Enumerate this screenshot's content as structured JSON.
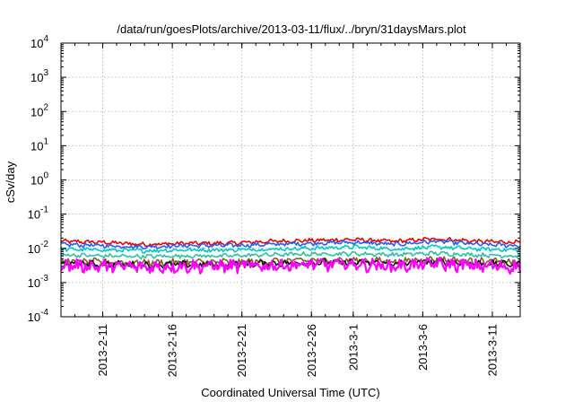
{
  "chart_data": {
    "type": "line",
    "title": "/data/run/goesPlots/archive/2013-03-11/flux/../bryn/31daysMars.plot",
    "xlabel": "Coordinated Universal Time (UTC)",
    "ylabel": "cSv/day",
    "yscale": "log",
    "ylim": [
      0.0001,
      10000
    ],
    "xlim": [
      "2013-02-08",
      "2013-03-13"
    ],
    "grid": true,
    "legend": "none",
    "yticks": [
      {
        "base": "10",
        "exp": "-4"
      },
      {
        "base": "10",
        "exp": "-3"
      },
      {
        "base": "10",
        "exp": "-2"
      },
      {
        "base": "10",
        "exp": "-1"
      },
      {
        "base": "10",
        "exp": "0"
      },
      {
        "base": "10",
        "exp": "1"
      },
      {
        "base": "10",
        "exp": "2"
      },
      {
        "base": "10",
        "exp": "3"
      },
      {
        "base": "10",
        "exp": "4"
      }
    ],
    "xticks": [
      {
        "date": "2013-02-11",
        "label": "2013-2-11"
      },
      {
        "date": "2013-02-16",
        "label": "2013-2-16"
      },
      {
        "date": "2013-02-21",
        "label": "2013-2-21"
      },
      {
        "date": "2013-02-26",
        "label": "2013-2-26"
      },
      {
        "date": "2013-03-01",
        "label": "2013-3-1"
      },
      {
        "date": "2013-03-06",
        "label": "2013-3-6"
      },
      {
        "date": "2013-03-11",
        "label": "2013-3-11"
      }
    ],
    "series": [
      {
        "color": "#ee0000",
        "x": [
          "2013-02-08",
          "2013-02-11",
          "2013-02-14",
          "2013-02-17",
          "2013-02-20",
          "2013-02-23",
          "2013-02-26",
          "2013-03-01",
          "2013-03-04",
          "2013-03-07",
          "2013-03-10",
          "2013-03-13"
        ],
        "y": [
          0.016,
          0.015,
          0.013,
          0.014,
          0.014,
          0.016,
          0.017,
          0.018,
          0.016,
          0.019,
          0.016,
          0.015
        ]
      },
      {
        "color": "#1e60ff",
        "x": [
          "2013-02-08",
          "2013-02-11",
          "2013-02-14",
          "2013-02-17",
          "2013-02-20",
          "2013-02-23",
          "2013-02-26",
          "2013-03-01",
          "2013-03-04",
          "2013-03-07",
          "2013-03-10",
          "2013-03-13"
        ],
        "y": [
          0.013,
          0.012,
          0.011,
          0.012,
          0.012,
          0.013,
          0.014,
          0.015,
          0.013,
          0.016,
          0.013,
          0.012
        ]
      },
      {
        "color": "#00c8c8",
        "x": [
          "2013-02-08",
          "2013-02-11",
          "2013-02-14",
          "2013-02-17",
          "2013-02-20",
          "2013-02-23",
          "2013-02-26",
          "2013-03-01",
          "2013-03-04",
          "2013-03-07",
          "2013-03-10",
          "2013-03-13"
        ],
        "y": [
          0.0095,
          0.009,
          0.0085,
          0.009,
          0.009,
          0.0095,
          0.01,
          0.011,
          0.0095,
          0.011,
          0.0095,
          0.009
        ]
      },
      {
        "color": "#2ec0a0",
        "x": [
          "2013-02-08",
          "2013-02-11",
          "2013-02-14",
          "2013-02-17",
          "2013-02-20",
          "2013-02-23",
          "2013-02-26",
          "2013-03-01",
          "2013-03-04",
          "2013-03-07",
          "2013-03-10",
          "2013-03-13"
        ],
        "y": [
          0.0065,
          0.006,
          0.0058,
          0.006,
          0.006,
          0.0065,
          0.0068,
          0.007,
          0.0065,
          0.0072,
          0.0064,
          0.006
        ]
      },
      {
        "color": "#8b5a2b",
        "x": [
          "2013-02-08",
          "2013-02-11",
          "2013-02-14",
          "2013-02-17",
          "2013-02-20",
          "2013-02-23",
          "2013-02-26",
          "2013-03-01",
          "2013-03-04",
          "2013-03-07",
          "2013-03-10",
          "2013-03-13"
        ],
        "y": [
          0.0042,
          0.004,
          0.0038,
          0.004,
          0.004,
          0.0042,
          0.0045,
          0.0046,
          0.0042,
          0.0048,
          0.0042,
          0.004
        ]
      },
      {
        "color": "#111111",
        "x": [
          "2013-02-08",
          "2013-02-11",
          "2013-02-14",
          "2013-02-17",
          "2013-02-20",
          "2013-02-23",
          "2013-02-26",
          "2013-03-01",
          "2013-03-04",
          "2013-03-07",
          "2013-03-10",
          "2013-03-13"
        ],
        "y": [
          0.0036,
          0.0034,
          0.0033,
          0.0034,
          0.0034,
          0.0036,
          0.0038,
          0.0039,
          0.0036,
          0.004,
          0.0036,
          0.0034
        ]
      },
      {
        "color": "#ff00ff",
        "x": [
          "2013-02-08",
          "2013-02-11",
          "2013-02-14",
          "2013-02-17",
          "2013-02-20",
          "2013-02-23",
          "2013-02-26",
          "2013-03-01",
          "2013-03-04",
          "2013-03-07",
          "2013-03-10",
          "2013-03-13"
        ],
        "y": [
          0.0032,
          0.003,
          0.0028,
          0.003,
          0.003,
          0.0031,
          0.0033,
          0.0034,
          0.003,
          0.0035,
          0.003,
          0.0029
        ]
      }
    ]
  }
}
